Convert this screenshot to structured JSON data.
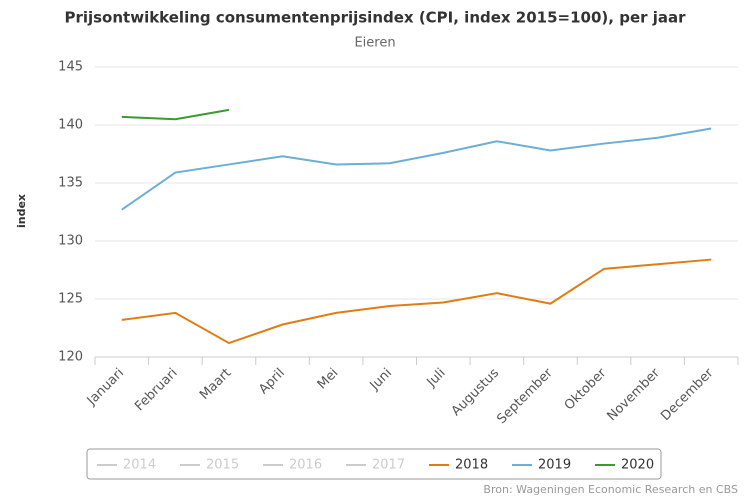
{
  "chart_data": {
    "type": "line",
    "title": "Prijsontwikkeling consumentenprijsindex (CPI, index 2015=100), per jaar",
    "subtitle": "Eieren",
    "y_label": "index",
    "source": "Bron: Wageningen Economic Research en CBS",
    "categories": [
      "Januari",
      "Februari",
      "Maart",
      "April",
      "Mei",
      "Juni",
      "Juli",
      "Augustus",
      "September",
      "Oktober",
      "November",
      "December"
    ],
    "series": [
      {
        "name": "2014",
        "color": "#cccccc",
        "hidden": true,
        "values": [
          null,
          null,
          null,
          null,
          null,
          null,
          null,
          null,
          null,
          null,
          null,
          null
        ]
      },
      {
        "name": "2015",
        "color": "#cccccc",
        "hidden": true,
        "values": [
          null,
          null,
          null,
          null,
          null,
          null,
          null,
          null,
          null,
          null,
          null,
          null
        ]
      },
      {
        "name": "2016",
        "color": "#cccccc",
        "hidden": true,
        "values": [
          null,
          null,
          null,
          null,
          null,
          null,
          null,
          null,
          null,
          null,
          null,
          null
        ]
      },
      {
        "name": "2017",
        "color": "#cccccc",
        "hidden": true,
        "values": [
          null,
          null,
          null,
          null,
          null,
          null,
          null,
          null,
          null,
          null,
          null,
          null
        ]
      },
      {
        "name": "2018",
        "color": "#e17c14",
        "values": [
          123.2,
          123.8,
          121.2,
          122.8,
          123.8,
          124.4,
          124.7,
          125.5,
          124.6,
          127.6,
          128.0,
          128.4
        ]
      },
      {
        "name": "2019",
        "color": "#6baed6",
        "values": [
          132.7,
          135.9,
          136.6,
          137.3,
          136.6,
          136.7,
          137.6,
          138.6,
          137.8,
          138.4,
          138.9,
          139.7
        ]
      },
      {
        "name": "2020",
        "color": "#3a9a2e",
        "values": [
          140.7,
          140.5,
          141.3,
          null,
          null,
          null,
          null,
          null,
          null,
          null,
          null,
          null
        ]
      }
    ],
    "ylim": [
      120,
      145
    ],
    "yticks": [
      120,
      125,
      130,
      135,
      140,
      145
    ],
    "grid": true
  }
}
